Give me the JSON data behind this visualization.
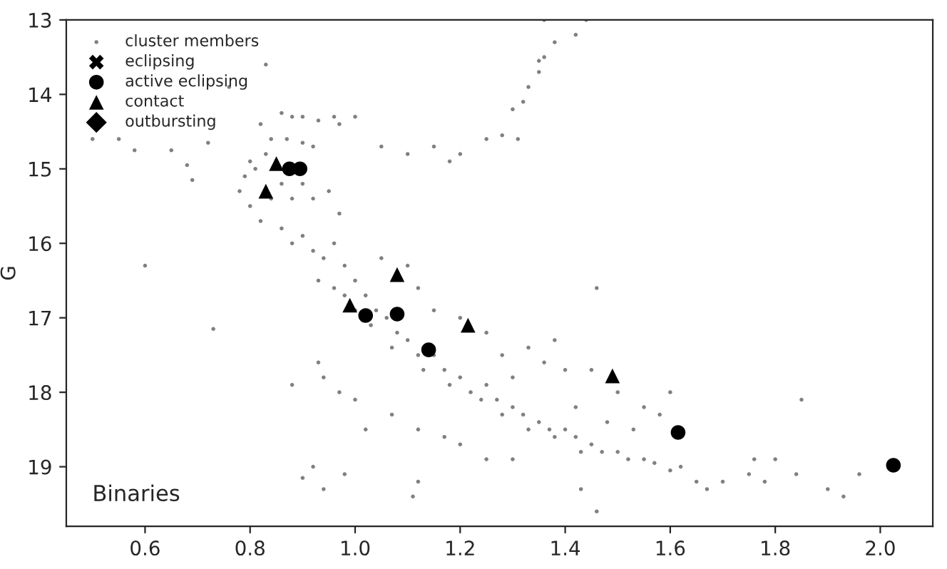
{
  "chart_data": {
    "type": "scatter",
    "ylabel": "G",
    "annotations": [
      "Binaries"
    ],
    "xlim": [
      0.45,
      2.1
    ],
    "ylim": [
      19.8,
      13
    ],
    "xticks": [
      {
        "value": 0.6,
        "label": "0.6"
      },
      {
        "value": 0.8,
        "label": "0.8"
      },
      {
        "value": 1.0,
        "label": "1.0"
      },
      {
        "value": 1.2,
        "label": "1.2"
      },
      {
        "value": 1.4,
        "label": "1.4"
      },
      {
        "value": 1.6,
        "label": "1.6"
      },
      {
        "value": 1.8,
        "label": "1.8"
      },
      {
        "value": 2.0,
        "label": "2.0"
      }
    ],
    "yticks": [
      13,
      14,
      15,
      16,
      17,
      18,
      19
    ],
    "legend": "top left",
    "grid": false,
    "series": [
      {
        "name": "cluster members",
        "color": "#808080",
        "marker": "circle",
        "x": [
          0.5,
          0.55,
          0.58,
          0.65,
          0.68,
          0.69,
          0.6,
          0.73,
          0.72,
          0.83,
          0.76,
          0.86,
          0.88,
          0.9,
          0.93,
          0.96,
          0.97,
          0.82,
          0.84,
          0.87,
          0.9,
          0.92,
          0.8,
          0.79,
          0.81,
          0.83,
          0.78,
          0.8,
          0.82,
          0.84,
          0.86,
          0.88,
          0.9,
          0.92,
          0.95,
          0.97,
          0.86,
          0.88,
          0.9,
          0.92,
          0.94,
          0.96,
          0.98,
          0.93,
          0.96,
          1.0,
          1.02,
          1.04,
          0.98,
          1.0,
          1.03,
          1.06,
          1.08,
          1.1,
          1.07,
          1.12,
          1.15,
          1.13,
          1.17,
          1.2,
          1.18,
          1.22,
          1.25,
          1.24,
          1.27,
          1.3,
          1.28,
          1.32,
          1.35,
          1.33,
          1.37,
          1.4,
          1.38,
          1.42,
          1.45,
          1.43,
          1.47,
          1.5,
          1.52,
          1.55,
          1.57,
          1.6,
          1.62,
          1.65,
          1.67,
          1.7,
          1.75,
          1.78,
          1.84,
          1.9,
          1.93,
          1.96,
          1.85,
          1.8,
          1.76,
          1.05,
          1.1,
          1.12,
          1.15,
          1.2,
          1.25,
          1.28,
          1.33,
          1.36,
          1.4,
          1.45,
          1.5,
          1.55,
          1.58,
          1.6,
          1.38,
          1.46,
          1.3,
          1.42,
          1.48,
          1.53,
          0.88,
          0.93,
          0.94,
          0.97,
          1.0,
          1.02,
          1.07,
          1.12,
          1.17,
          0.9,
          0.92,
          0.94,
          0.98,
          1.12,
          1.11,
          1.2,
          1.43,
          1.46,
          1.25,
          1.3,
          1.1,
          1.15,
          1.2,
          1.18,
          1.25,
          1.3,
          1.32,
          1.33,
          1.35,
          1.36,
          1.38,
          1.42,
          1.36,
          1.44,
          1.31,
          1.28,
          1.0,
          1.05,
          1.35
        ],
        "values": [
          14.6,
          14.6,
          14.75,
          14.75,
          14.95,
          15.15,
          16.3,
          17.15,
          14.65,
          13.6,
          13.9,
          14.25,
          14.3,
          14.3,
          14.35,
          14.3,
          14.4,
          14.4,
          14.6,
          14.6,
          14.65,
          14.7,
          14.9,
          15.1,
          15.0,
          14.8,
          15.3,
          15.5,
          15.7,
          15.4,
          15.2,
          15.4,
          15.2,
          15.4,
          15.3,
          15.6,
          15.8,
          16.0,
          15.9,
          16.1,
          16.2,
          16.0,
          16.3,
          16.5,
          16.6,
          16.5,
          16.7,
          16.9,
          16.7,
          16.9,
          17.1,
          17.0,
          17.2,
          17.3,
          17.4,
          17.5,
          17.5,
          17.7,
          17.7,
          17.8,
          17.9,
          18.0,
          17.9,
          18.1,
          18.1,
          18.2,
          18.3,
          18.3,
          18.4,
          18.5,
          18.5,
          18.5,
          18.6,
          18.6,
          18.7,
          18.8,
          18.8,
          18.8,
          18.9,
          18.9,
          18.95,
          19.05,
          19.0,
          19.2,
          19.3,
          19.2,
          19.1,
          19.2,
          19.1,
          19.3,
          19.4,
          19.1,
          18.1,
          18.9,
          18.9,
          16.2,
          16.3,
          16.6,
          16.9,
          17.0,
          17.2,
          17.5,
          17.4,
          17.6,
          17.7,
          17.7,
          18.0,
          18.2,
          18.3,
          18.0,
          17.3,
          16.6,
          17.8,
          18.2,
          18.4,
          18.5,
          17.9,
          17.6,
          17.8,
          18.0,
          18.1,
          18.5,
          18.3,
          18.5,
          18.6,
          19.15,
          19.0,
          19.3,
          19.1,
          19.2,
          19.4,
          18.7,
          19.3,
          19.6,
          18.9,
          18.9,
          14.8,
          14.7,
          14.8,
          14.9,
          14.6,
          14.2,
          14.1,
          13.9,
          13.7,
          13.5,
          13.3,
          13.2,
          13.0,
          13.0,
          14.6,
          14.55,
          14.3,
          14.7,
          13.55
        ]
      },
      {
        "name": "eclipsing",
        "color": "#000000",
        "marker": "cross"
      },
      {
        "name": "active eclipsing",
        "color": "#000000",
        "marker": "circle",
        "x": [
          0.875,
          0.895,
          1.02,
          1.08,
          1.14,
          1.615,
          2.025
        ],
        "values": [
          15.0,
          15.0,
          16.97,
          16.95,
          17.43,
          18.54,
          18.98
        ]
      },
      {
        "name": "contact",
        "color": "#000000",
        "marker": "triangle",
        "x": [
          0.85,
          0.83,
          0.99,
          1.08,
          1.215,
          1.49
        ],
        "values": [
          14.93,
          15.3,
          16.83,
          16.42,
          17.1,
          17.78
        ]
      },
      {
        "name": "outbursting",
        "color": "#000000",
        "marker": "diamond"
      }
    ]
  }
}
